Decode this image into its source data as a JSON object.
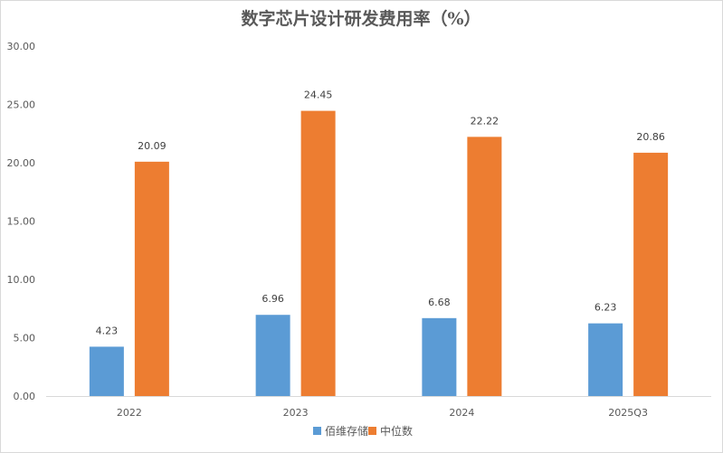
{
  "chart_data": {
    "type": "bar",
    "title": "数字芯片设计研发费用率（%）",
    "categories": [
      "2022",
      "2023",
      "2024",
      "2025Q3"
    ],
    "series": [
      {
        "name": "佰维存储",
        "values": [
          4.23,
          6.96,
          6.68,
          6.23
        ],
        "color": "#5b9bd5"
      },
      {
        "name": "中位数",
        "values": [
          20.09,
          24.45,
          22.22,
          20.86
        ],
        "color": "#ed7d31"
      }
    ],
    "value_labels": [
      [
        "4.23",
        "6.96",
        "6.68",
        "6.23"
      ],
      [
        "20.09",
        "24.45",
        "22.22",
        "20.86"
      ]
    ],
    "yticks": [
      "0.00",
      "5.00",
      "10.00",
      "15.00",
      "20.00",
      "25.00",
      "30.00"
    ],
    "ylim": [
      0,
      30
    ],
    "grid": false,
    "legend_position": "bottom"
  }
}
